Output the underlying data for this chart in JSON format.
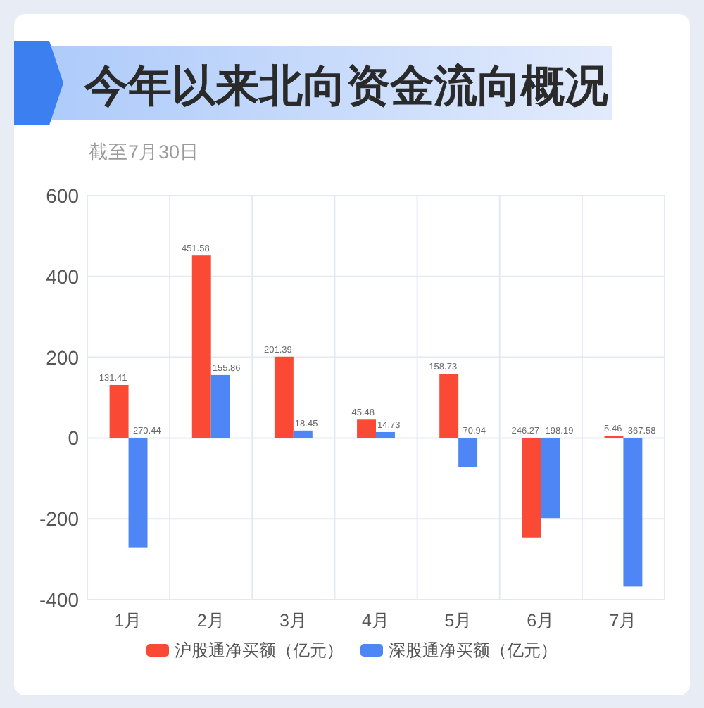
{
  "chart_data": {
    "type": "bar",
    "title": "今年以来北向资金流向概况",
    "annotations": [
      "截至7月30日"
    ],
    "categories": [
      "1月",
      "2月",
      "3月",
      "4月",
      "5月",
      "6月",
      "7月"
    ],
    "series": [
      {
        "name": "沪股通净买额（亿元）",
        "color": "#fa4a35",
        "values": [
          131.41,
          451.58,
          201.39,
          45.48,
          158.73,
          -246.27,
          5.46
        ]
      },
      {
        "name": "深股通净买额（亿元）",
        "color": "#4e86f6",
        "values": [
          -270.44,
          155.86,
          18.45,
          14.73,
          -70.94,
          -198.19,
          -367.58
        ]
      }
    ],
    "ylim": [
      -400,
      600
    ],
    "yticks": [
      -400,
      -200,
      0,
      200,
      400,
      600
    ],
    "grid": true,
    "legend": "bottom",
    "data_labels": true
  }
}
